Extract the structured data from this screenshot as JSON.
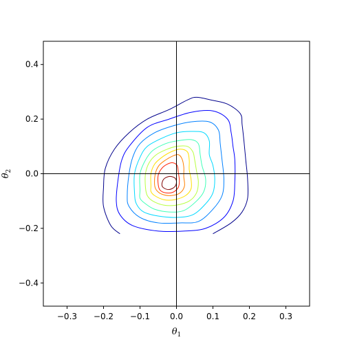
{
  "chart_data": {
    "type": "contour",
    "title": "",
    "xlabel": "θ1",
    "ylabel": "θ2",
    "xlim": [
      -0.365,
      0.365
    ],
    "ylim": [
      -0.485,
      0.485
    ],
    "x_ticks": [
      -0.3,
      -0.2,
      -0.1,
      0.0,
      0.1,
      0.2,
      0.3
    ],
    "y_ticks": [
      -0.4,
      -0.2,
      0.0,
      0.2,
      0.4
    ],
    "x_tick_labels": [
      "−0.3",
      "−0.2",
      "−0.1",
      "0.0",
      "0.1",
      "0.2",
      "0.3"
    ],
    "y_tick_labels": [
      "−0.4",
      "−0.2",
      "0.0",
      "0.2",
      "0.4"
    ],
    "reference_lines": {
      "x": 0.0,
      "y": 0.0
    },
    "grid": false,
    "colormap": "jet",
    "level_colors": [
      "#00008b",
      "#0000ff",
      "#0080ff",
      "#00d8ff",
      "#40ffb8",
      "#b8ff40",
      "#ffe000",
      "#ff8000",
      "#ff2000",
      "#7f0000"
    ],
    "contours": [
      {
        "level": 1,
        "color": "#00008b",
        "open": true,
        "points": [
          [
            -0.155,
            -0.22
          ],
          [
            -0.18,
            -0.19
          ],
          [
            -0.2,
            -0.12
          ],
          [
            -0.2,
            -0.05
          ],
          [
            -0.195,
            0.02
          ],
          [
            -0.17,
            0.09
          ],
          [
            -0.13,
            0.15
          ],
          [
            -0.08,
            0.2
          ],
          [
            -0.02,
            0.235
          ],
          [
            0.03,
            0.27
          ],
          [
            0.055,
            0.28
          ],
          [
            0.095,
            0.27
          ],
          [
            0.14,
            0.255
          ],
          [
            0.175,
            0.22
          ],
          [
            0.18,
            0.18
          ],
          [
            0.185,
            0.12
          ],
          [
            0.19,
            0.05
          ],
          [
            0.195,
            -0.02
          ],
          [
            0.195,
            -0.09
          ],
          [
            0.18,
            -0.14
          ],
          [
            0.15,
            -0.18
          ],
          [
            0.1,
            -0.22
          ]
        ]
      },
      {
        "level": 2,
        "color": "#0000ff",
        "points": [
          [
            -0.165,
            -0.1
          ],
          [
            -0.16,
            -0.02
          ],
          [
            -0.15,
            0.05
          ],
          [
            -0.13,
            0.1
          ],
          [
            -0.08,
            0.17
          ],
          [
            -0.02,
            0.2
          ],
          [
            0.04,
            0.225
          ],
          [
            0.1,
            0.23
          ],
          [
            0.14,
            0.2
          ],
          [
            0.15,
            0.15
          ],
          [
            0.155,
            0.1
          ],
          [
            0.16,
            0.05
          ],
          [
            0.16,
            -0.03
          ],
          [
            0.155,
            -0.1
          ],
          [
            0.13,
            -0.16
          ],
          [
            0.08,
            -0.2
          ],
          [
            0.02,
            -0.21
          ],
          [
            -0.05,
            -0.21
          ],
          [
            -0.12,
            -0.19
          ],
          [
            -0.155,
            -0.15
          ]
        ]
      },
      {
        "level": 3,
        "color": "#0080ff",
        "points": [
          [
            -0.135,
            -0.08
          ],
          [
            -0.13,
            0.0
          ],
          [
            -0.12,
            0.06
          ],
          [
            -0.1,
            0.11
          ],
          [
            -0.06,
            0.15
          ],
          [
            -0.01,
            0.175
          ],
          [
            0.04,
            0.19
          ],
          [
            0.09,
            0.19
          ],
          [
            0.115,
            0.16
          ],
          [
            0.12,
            0.11
          ],
          [
            0.125,
            0.05
          ],
          [
            0.13,
            -0.02
          ],
          [
            0.125,
            -0.08
          ],
          [
            0.1,
            -0.13
          ],
          [
            0.06,
            -0.175
          ],
          [
            0.01,
            -0.18
          ],
          [
            -0.05,
            -0.18
          ],
          [
            -0.1,
            -0.16
          ],
          [
            -0.13,
            -0.12
          ]
        ]
      },
      {
        "level": 4,
        "color": "#00d8ff",
        "points": [
          [
            -0.115,
            -0.07
          ],
          [
            -0.115,
            0.0
          ],
          [
            -0.1,
            0.06
          ],
          [
            -0.08,
            0.1
          ],
          [
            -0.04,
            0.13
          ],
          [
            0.0,
            0.15
          ],
          [
            0.04,
            0.155
          ],
          [
            0.075,
            0.15
          ],
          [
            0.09,
            0.12
          ],
          [
            0.09,
            0.07
          ],
          [
            0.1,
            0.03
          ],
          [
            0.105,
            -0.02
          ],
          [
            0.1,
            -0.07
          ],
          [
            0.08,
            -0.11
          ],
          [
            0.045,
            -0.15
          ],
          [
            0.0,
            -0.16
          ],
          [
            -0.05,
            -0.155
          ],
          [
            -0.09,
            -0.14
          ],
          [
            -0.11,
            -0.11
          ]
        ]
      },
      {
        "level": 5,
        "color": "#40ffb8",
        "points": [
          [
            -0.1,
            -0.06
          ],
          [
            -0.1,
            0.0
          ],
          [
            -0.085,
            0.05
          ],
          [
            -0.065,
            0.085
          ],
          [
            -0.03,
            0.11
          ],
          [
            0.0,
            0.12
          ],
          [
            0.04,
            0.125
          ],
          [
            0.06,
            0.11
          ],
          [
            0.065,
            0.07
          ],
          [
            0.07,
            0.03
          ],
          [
            0.08,
            -0.02
          ],
          [
            0.075,
            -0.065
          ],
          [
            0.055,
            -0.1
          ],
          [
            0.02,
            -0.135
          ],
          [
            -0.02,
            -0.14
          ],
          [
            -0.06,
            -0.13
          ],
          [
            -0.085,
            -0.11
          ],
          [
            -0.1,
            -0.09
          ]
        ]
      },
      {
        "level": 6,
        "color": "#b8ff40",
        "points": [
          [
            -0.085,
            -0.05
          ],
          [
            -0.085,
            0.0
          ],
          [
            -0.075,
            0.04
          ],
          [
            -0.055,
            0.07
          ],
          [
            -0.025,
            0.09
          ],
          [
            0.0,
            0.1
          ],
          [
            0.03,
            0.1
          ],
          [
            0.045,
            0.08
          ],
          [
            0.05,
            0.05
          ],
          [
            0.055,
            0.01
          ],
          [
            0.06,
            -0.03
          ],
          [
            0.055,
            -0.07
          ],
          [
            0.035,
            -0.1
          ],
          [
            0.0,
            -0.115
          ],
          [
            -0.035,
            -0.115
          ],
          [
            -0.065,
            -0.1
          ],
          [
            -0.08,
            -0.08
          ]
        ]
      },
      {
        "level": 7,
        "color": "#ffe000",
        "points": [
          [
            -0.07,
            -0.045
          ],
          [
            -0.07,
            0.0
          ],
          [
            -0.06,
            0.035
          ],
          [
            -0.04,
            0.06
          ],
          [
            -0.015,
            0.08
          ],
          [
            0.01,
            0.09
          ],
          [
            0.03,
            0.08
          ],
          [
            0.035,
            0.05
          ],
          [
            0.035,
            0.015
          ],
          [
            0.04,
            -0.02
          ],
          [
            0.04,
            -0.055
          ],
          [
            0.025,
            -0.08
          ],
          [
            -0.005,
            -0.095
          ],
          [
            -0.035,
            -0.095
          ],
          [
            -0.06,
            -0.08
          ],
          [
            -0.07,
            -0.065
          ]
        ]
      },
      {
        "level": 8,
        "color": "#ff8000",
        "points": [
          [
            -0.06,
            -0.04
          ],
          [
            -0.058,
            0.0
          ],
          [
            -0.048,
            0.03
          ],
          [
            -0.03,
            0.05
          ],
          [
            -0.01,
            0.065
          ],
          [
            0.005,
            0.07
          ],
          [
            0.015,
            0.055
          ],
          [
            0.02,
            0.025
          ],
          [
            0.02,
            -0.01
          ],
          [
            0.022,
            -0.045
          ],
          [
            0.01,
            -0.07
          ],
          [
            -0.015,
            -0.08
          ],
          [
            -0.04,
            -0.075
          ],
          [
            -0.055,
            -0.06
          ]
        ]
      },
      {
        "level": 9,
        "color": "#ff2000",
        "points": [
          [
            -0.05,
            -0.04
          ],
          [
            -0.05,
            -0.005
          ],
          [
            -0.04,
            0.02
          ],
          [
            -0.025,
            0.035
          ],
          [
            -0.01,
            0.04
          ],
          [
            0.002,
            0.03
          ],
          [
            0.005,
            0.005
          ],
          [
            0.008,
            -0.025
          ],
          [
            0.005,
            -0.05
          ],
          [
            -0.01,
            -0.068
          ],
          [
            -0.03,
            -0.07
          ],
          [
            -0.045,
            -0.06
          ]
        ]
      },
      {
        "level": 10,
        "color": "#7f0000",
        "points": [
          [
            -0.04,
            -0.04
          ],
          [
            -0.035,
            -0.02
          ],
          [
            -0.02,
            -0.01
          ],
          [
            -0.005,
            -0.015
          ],
          [
            0.0,
            -0.03
          ],
          [
            -0.005,
            -0.048
          ],
          [
            -0.02,
            -0.058
          ],
          [
            -0.035,
            -0.052
          ]
        ]
      }
    ]
  }
}
